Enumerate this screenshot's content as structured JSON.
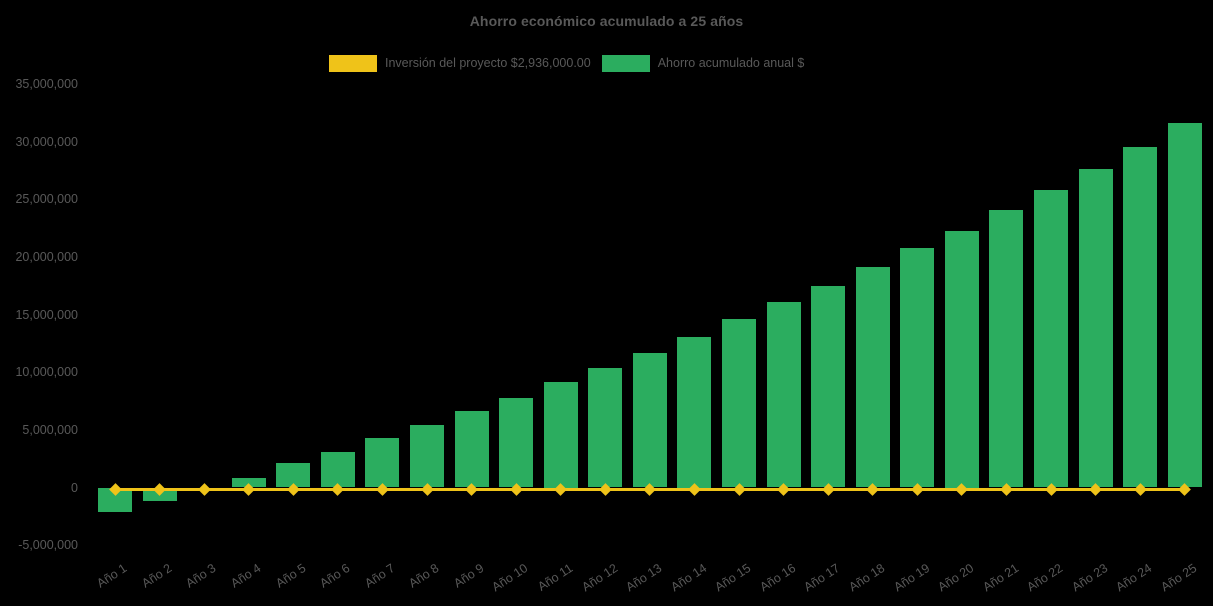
{
  "chart": {
    "title": "Ahorro económico acumulado a 25 años"
  },
  "legend": {
    "investment_label": "Inversión del proyecto $2,936,000.00",
    "savings_label": "Ahorro acumulado anual $"
  },
  "colors": {
    "background": "#000000",
    "text": "#595959",
    "investment_yellow": "#EFC319",
    "savings_green": "#2BAD5F"
  },
  "chart_data": {
    "type": "bar",
    "title": "Ahorro económico acumulado a 25 años",
    "categories": [
      "Año 1",
      "Año 2",
      "Año 3",
      "Año 4",
      "Año 5",
      "Año 6",
      "Año 7",
      "Año 8",
      "Año 9",
      "Año 10",
      "Año 11",
      "Año 12",
      "Año 13",
      "Año 14",
      "Año 15",
      "Año 16",
      "Año 17",
      "Año 18",
      "Año 19",
      "Año 20",
      "Año 21",
      "Año 22",
      "Año 23",
      "Año 24",
      "Año 25"
    ],
    "series": [
      {
        "name": "Inversión del proyecto $2,936,000.00",
        "type": "line",
        "color": "#EFC319",
        "marker": "diamond",
        "values": [
          0,
          0,
          0,
          0,
          0,
          0,
          0,
          0,
          0,
          0,
          0,
          0,
          0,
          0,
          0,
          0,
          0,
          0,
          0,
          0,
          0,
          0,
          0,
          0,
          0
        ]
      },
      {
        "name": "Ahorro acumulado anual $",
        "type": "bar",
        "color": "#2BAD5F",
        "values": [
          -2150000,
          -1150000,
          0,
          850000,
          2100000,
          3050000,
          4300000,
          5400000,
          6650000,
          7800000,
          9150000,
          10400000,
          11700000,
          13100000,
          14600000,
          16100000,
          17500000,
          19150000,
          20800000,
          22250000,
          24100000,
          25800000,
          27600000,
          29500000,
          31600000
        ]
      }
    ],
    "y_ticks": [
      {
        "label": "35,000,000",
        "value": 35000000
      },
      {
        "label": "30,000,000",
        "value": 30000000
      },
      {
        "label": "25,000,000",
        "value": 25000000
      },
      {
        "label": "20,000,000",
        "value": 20000000
      },
      {
        "label": "15,000,000",
        "value": 15000000
      },
      {
        "label": "10,000,000",
        "value": 10000000
      },
      {
        "label": "5,000,000",
        "value": 5000000
      },
      {
        "label": "0",
        "value": 0
      },
      {
        "label": "-5,000,000",
        "value": -5000000
      }
    ],
    "ylim": [
      -5000000,
      35000000
    ],
    "ytick_step": 5000000,
    "grid": false,
    "legend_position": "top",
    "xlabel": "",
    "ylabel": ""
  }
}
